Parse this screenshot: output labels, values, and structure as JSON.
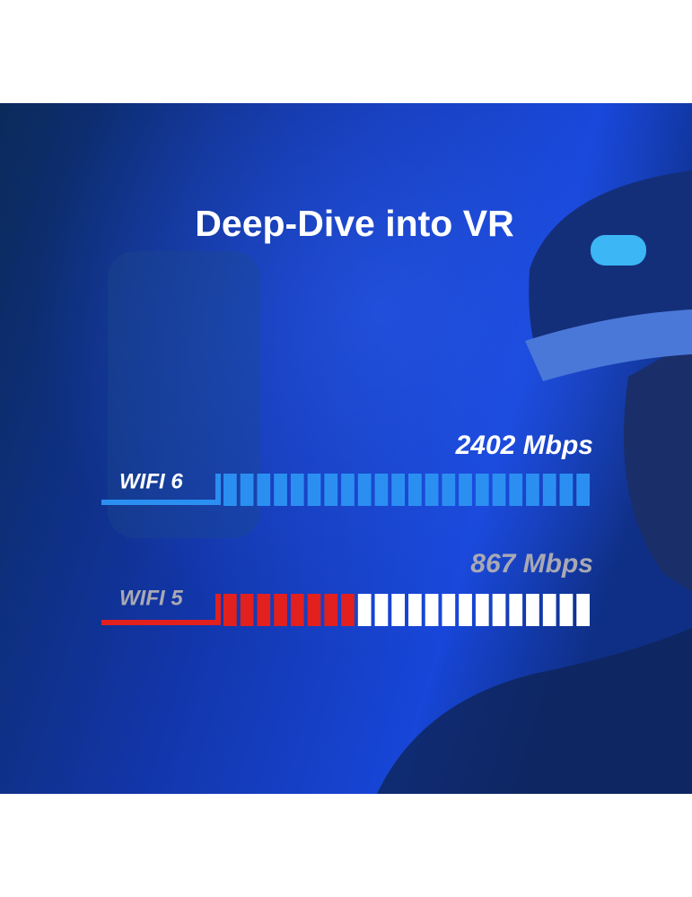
{
  "chart_data": {
    "type": "segmented-bar",
    "title": "Deep-Dive into VR",
    "categories": [
      "WIFI 6",
      "WIFI 5"
    ],
    "values": [
      2402,
      867
    ],
    "value_labels": [
      "2402 Mbps",
      "867 Mbps"
    ],
    "colors": [
      "#2b8ff2",
      "#e2201e"
    ]
  }
}
